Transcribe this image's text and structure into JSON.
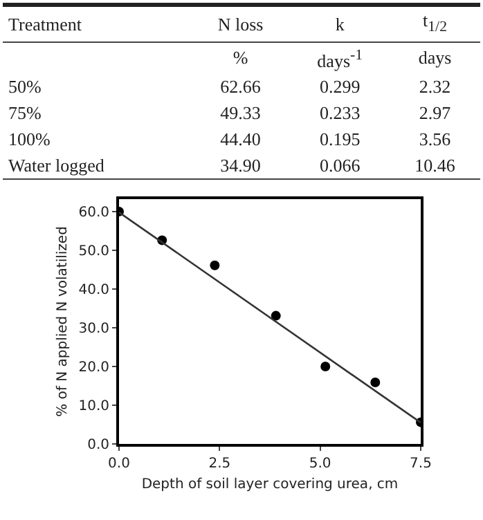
{
  "chart_data": [
    {
      "type": "other",
      "annotations": [
        "Treatment",
        "N  loss",
        "k",
        "t$_{1/2}$",
        "%",
        "days$^{-1}$",
        "days",
        "50%",
        "62.66",
        "0.299",
        "2.32",
        "75%",
        "49.33",
        "0.233",
        "2.97",
        "100%",
        "44.40",
        "0.195",
        "3.56",
        "Water  logged",
        "34.90",
        "0.066",
        "10.46"
      ]
    },
    {
      "type": "scatter",
      "xlabel": "Depth of soil layer covering urea, cm",
      "ylabel": "% of N applied N volatilized",
      "marker": "circle",
      "grid": false,
      "xlim": [
        0,
        7.5
      ],
      "xticks": [
        {
          "value": 0,
          "label": "0.0"
        },
        2.5,
        {
          "value": 5,
          "label": "5.0"
        },
        7.5
      ],
      "ylim": [
        0,
        63.2
      ],
      "yticks": [
        {
          "value": 0,
          "label": "0.0"
        },
        {
          "value": 10,
          "label": "10.0"
        },
        {
          "value": 20,
          "label": "20.0"
        },
        {
          "value": 30,
          "label": "30.0"
        },
        {
          "value": 40,
          "label": "40.0"
        },
        {
          "value": 50,
          "label": "50.0"
        },
        {
          "value": 60,
          "label": "60.0"
        }
      ],
      "series": [
        {
          "color": "#000000",
          "x": [
            0,
            1.07,
            2.38,
            3.9,
            5.13,
            6.37,
            7.5
          ],
          "values": [
            60,
            52.6,
            46.1,
            33.1,
            20,
            15.9,
            5.6
          ]
        },
        {
          "type": "line",
          "marker": "none",
          "color": "#333333",
          "x": [
            0,
            7.5
          ],
          "values": [
            59.8,
            5.5
          ]
        }
      ]
    }
  ]
}
